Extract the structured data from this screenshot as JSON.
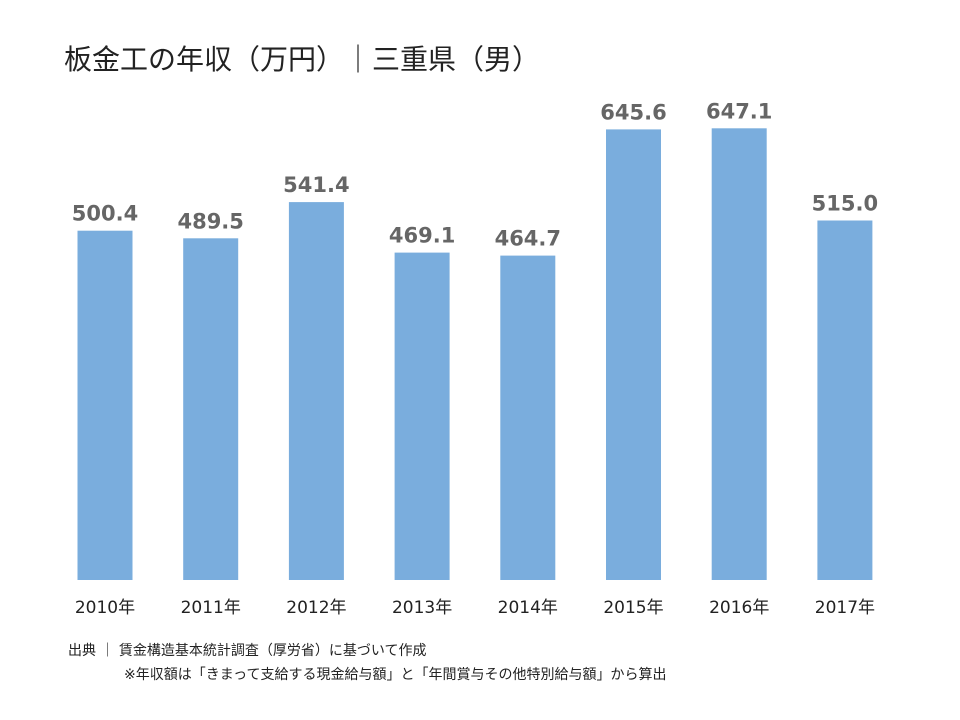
{
  "chart_data": {
    "type": "bar",
    "title": "板金工の年収（万円）｜三重県（男）",
    "categories": [
      "2010年",
      "2011年",
      "2012年",
      "2013年",
      "2014年",
      "2015年",
      "2016年",
      "2017年"
    ],
    "values": [
      500.4,
      489.5,
      541.4,
      469.1,
      464.7,
      645.6,
      647.1,
      515.0
    ],
    "value_labels": [
      "500.4",
      "489.5",
      "541.4",
      "469.1",
      "464.7",
      "645.6",
      "647.1",
      "515.0"
    ],
    "xlabel": "",
    "ylabel": "",
    "ylim": [
      0,
      700
    ],
    "grid": false,
    "bar_color": "#7aaddd",
    "label_color": "#666666",
    "tick_color": "#222222"
  },
  "footer": {
    "source": "出典 ｜ 賃金構造基本統計調査（厚労省）に基づいて作成",
    "note": "※年収額は「きまって支給する現金給与額」と「年間賞与その他特別給与額」から算出"
  }
}
